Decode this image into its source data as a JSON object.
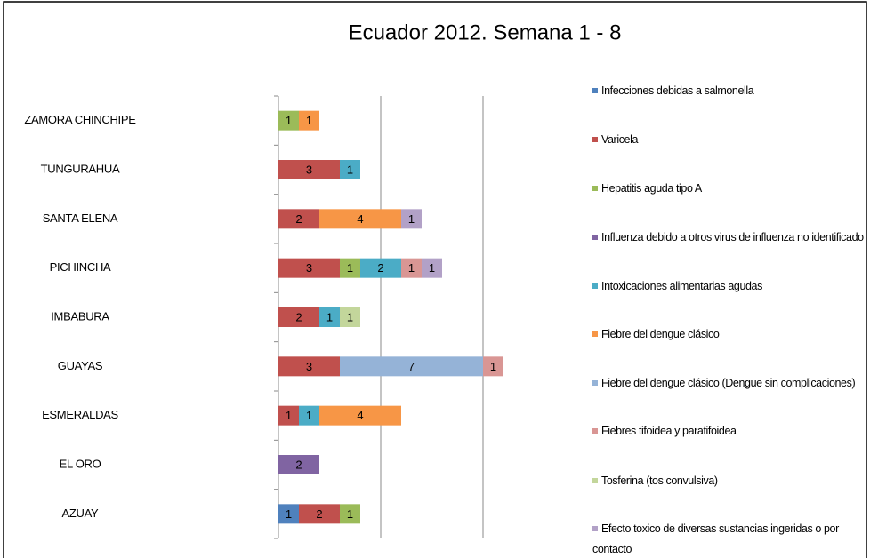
{
  "chart_data": {
    "type": "stacked_barh",
    "title": "Ecuador 2012. Semana 1 - 8",
    "categories": [
      "AZUAY",
      "EL ORO",
      "ESMERALDAS",
      "GUAYAS",
      "IMBABURA",
      "PICHINCHA",
      "SANTA ELENA",
      "TUNGURAHUA",
      "ZAMORA CHINCHIPE"
    ],
    "series": [
      {
        "name": "Infecciones debidas a salmonella",
        "color": "#4f81bd",
        "values": [
          1,
          null,
          null,
          null,
          null,
          null,
          null,
          null,
          null
        ]
      },
      {
        "name": "Varicela",
        "color": "#c0504d",
        "values": [
          2,
          null,
          1,
          3,
          2,
          3,
          2,
          3,
          null
        ]
      },
      {
        "name": "Hepatitis aguda tipo A",
        "color": "#9bbb59",
        "values": [
          1,
          null,
          null,
          null,
          null,
          1,
          null,
          null,
          1
        ]
      },
      {
        "name": "Influenza debido a otros virus de influenza no identificado",
        "color": "#8064a2",
        "values": [
          null,
          2,
          null,
          null,
          null,
          null,
          null,
          null,
          null
        ]
      },
      {
        "name": "Intoxicaciones alimentarias agudas",
        "color": "#4bacc6",
        "values": [
          null,
          null,
          1,
          null,
          1,
          2,
          null,
          1,
          null
        ]
      },
      {
        "name": "Fiebre del dengue clásico",
        "color": "#f79646",
        "values": [
          null,
          null,
          4,
          null,
          null,
          null,
          4,
          null,
          1
        ]
      },
      {
        "name": "Fiebre del dengue clásico (Dengue sin complicaciones)",
        "color": "#95b3d7",
        "values": [
          null,
          null,
          null,
          7,
          null,
          null,
          null,
          null,
          null
        ]
      },
      {
        "name": "Fiebres tifoidea y paratifoidea",
        "color": "#d99694",
        "values": [
          null,
          null,
          null,
          1,
          null,
          1,
          null,
          null,
          null
        ]
      },
      {
        "name": "Tosferina (tos convulsiva)",
        "color": "#c3d69b",
        "values": [
          null,
          null,
          null,
          null,
          1,
          null,
          null,
          null,
          null
        ]
      },
      {
        "name": "Efecto toxico de diversas sustancias ingeridas o por contacto",
        "color": "#b2a1c7",
        "values": [
          null,
          null,
          null,
          null,
          null,
          1,
          1,
          null,
          null
        ]
      }
    ],
    "xlim": [
      0,
      15
    ],
    "xgrid": [
      5,
      10
    ],
    "grid": true
  }
}
